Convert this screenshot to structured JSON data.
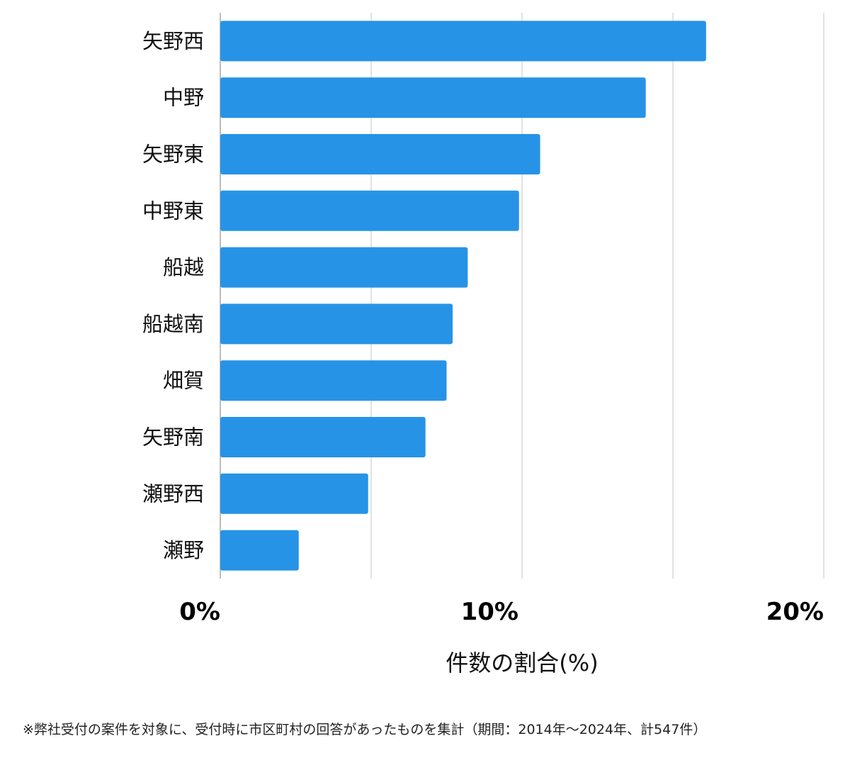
{
  "chart_data": {
    "type": "bar",
    "orientation": "horizontal",
    "categories": [
      "矢野西",
      "中野",
      "矢野東",
      "中野東",
      "船越",
      "船越南",
      "畑賀",
      "矢野南",
      "瀬野西",
      "瀬野"
    ],
    "values": [
      16.1,
      14.1,
      10.6,
      9.9,
      8.2,
      7.7,
      7.5,
      6.8,
      4.9,
      2.6
    ],
    "xlim": [
      0,
      20
    ],
    "xticks": [
      0,
      10,
      20
    ],
    "xtick_labels": [
      "0%",
      "10%",
      "20%"
    ],
    "xlabel": "件数の割合(%)",
    "gridlines": [
      0,
      5,
      10,
      15,
      20
    ],
    "grid": true,
    "bar_color": "#2793e6",
    "grid_color": "#d9d9d9"
  },
  "footnote": "※弊社受付の案件を対象に、受付時に市区町村の回答があったものを集計（期間：2014年～2024年、計547件）"
}
